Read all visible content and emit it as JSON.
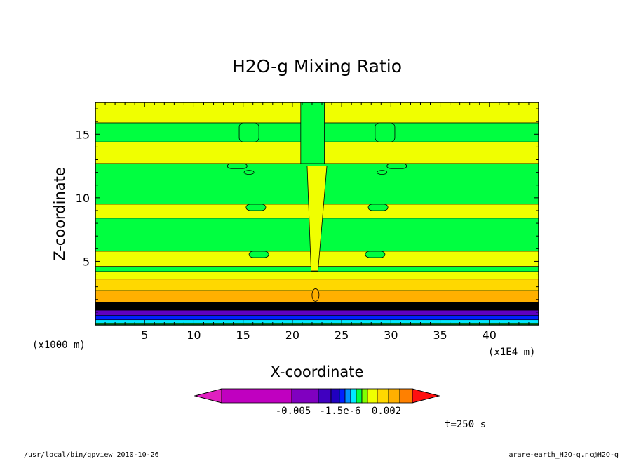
{
  "chart_data": {
    "type": "contour",
    "title": "H2O-g Mixing Ratio",
    "xlabel": "X-coordinate",
    "ylabel": "Z-coordinate",
    "x_unit": "(x1E4 m)",
    "y_unit": "(x1000 m)",
    "xlim": [
      0,
      45
    ],
    "ylim": [
      0,
      17.5
    ],
    "x_ticks": [
      5,
      10,
      15,
      20,
      25,
      30,
      35,
      40
    ],
    "y_ticks": [
      5,
      10,
      15
    ],
    "colorbar": {
      "colors": [
        "#e020c0",
        "#c000c0",
        "#8000c0",
        "#4000c0",
        "#2000c0",
        "#0020ff",
        "#0090ff",
        "#00e8ff",
        "#00ff40",
        "#80ff00",
        "#f0ff00",
        "#ffd800",
        "#ffb000",
        "#ff8000",
        "#ff5000",
        "#ff1010"
      ],
      "tick_labels": [
        "-0.005",
        "-1.5e-6",
        "0.002"
      ]
    },
    "colors": {
      "yellow": "#f0ff00",
      "green": "#00ff40",
      "gold": "#ffd800",
      "amber": "#ffb000",
      "dark": "#000000",
      "purple": "#6000c0",
      "blue": "#0020ff",
      "cyan": "#00e8ff"
    },
    "time_label": "t=250 s"
  },
  "footer": {
    "left": "/usr/local/bin/gpview  2010-10-26",
    "right": "arare-earth_H2O-g.nc@H2O-g"
  }
}
